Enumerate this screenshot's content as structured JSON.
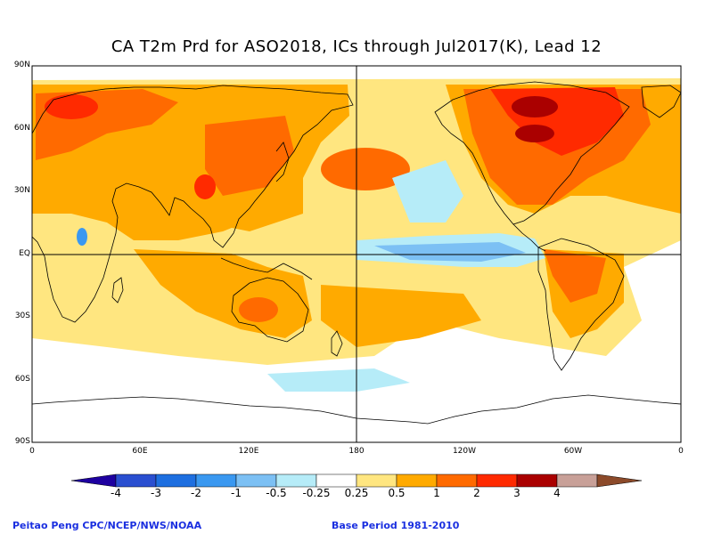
{
  "title": "CA T2m Prd for ASO2018, ICs through Jul2017(K), Lead 12",
  "lat_labels": [
    "90N",
    "60N",
    "30N",
    "EQ",
    "30S",
    "60S",
    "90S"
  ],
  "lon_labels": [
    "0",
    "60E",
    "120E",
    "180",
    "120W",
    "60W",
    "0"
  ],
  "legend": {
    "labels": [
      "-4",
      "-3",
      "-2",
      "-1",
      "-0.5",
      "-0.25",
      "0.25",
      "0.5",
      "1",
      "2",
      "3",
      "4"
    ],
    "colors": [
      "#1e00a0",
      "#2a4fd0",
      "#1e6fe0",
      "#3a98f0",
      "#7cc0f4",
      "#b6ecf8",
      "#ffffff",
      "#ffe680",
      "#ffaa00",
      "#ff6a00",
      "#ff2a00",
      "#aa0000",
      "#c8a098",
      "#8c4a2a"
    ]
  },
  "field_colors": {
    "light_yellow": "#ffe680",
    "orange": "#ffaa00",
    "red_orange": "#ff6a00",
    "red": "#ff2a00",
    "dark_red": "#aa0000",
    "light_cyan": "#b6ecf8",
    "light_blue": "#7cc0f4",
    "blue": "#3a98f0"
  },
  "credits": {
    "left": "Peitao Peng CPC/NCEP/NWS/NOAA",
    "right": "Base Period 1981-2010"
  }
}
